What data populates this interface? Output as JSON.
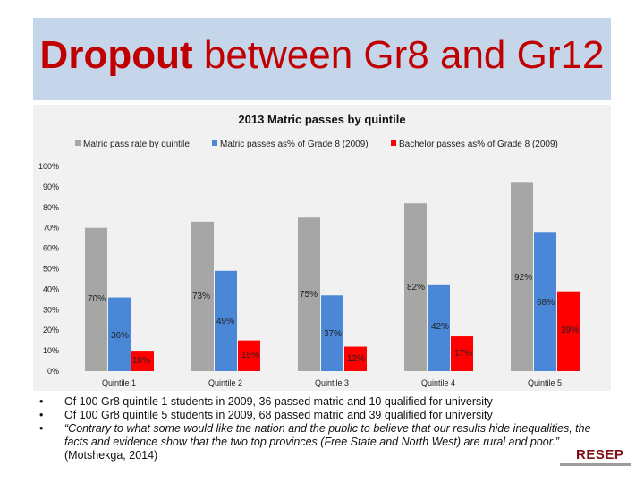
{
  "slide": {
    "title_bold": "Dropout",
    "title_rest": "between Gr8 and Gr12"
  },
  "chart_data": {
    "type": "bar",
    "title": "2013 Matric passes by quintile",
    "categories": [
      "Quintile 1",
      "Quintile 2",
      "Quintile 3",
      "Quintile 4",
      "Quintile 5"
    ],
    "series": [
      {
        "name": "Matric pass rate by quintile",
        "color": "#a6a6a6",
        "values": [
          70,
          73,
          75,
          82,
          92
        ],
        "labels": [
          "70%",
          "73%",
          "75%",
          "82%",
          "92%"
        ]
      },
      {
        "name": "Matric passes as% of Grade 8 (2009)",
        "color": "#4a87d6",
        "values": [
          36,
          49,
          37,
          42,
          68
        ],
        "labels": [
          "36%",
          "49%",
          "37%",
          "42%",
          "68%"
        ]
      },
      {
        "name": "Bachelor passes as% of Grade 8 (2009)",
        "color": "#ff0000",
        "values": [
          10,
          15,
          12,
          17,
          39
        ],
        "labels": [
          "10%",
          "15%",
          "12%",
          "17%",
          "39%"
        ]
      }
    ],
    "yticks": [
      "0%",
      "10%",
      "20%",
      "30%",
      "40%",
      "50%",
      "60%",
      "70%",
      "80%",
      "90%",
      "100%"
    ],
    "ylim": [
      0,
      100
    ],
    "legend": "top",
    "grid": false
  },
  "bullets": [
    {
      "text": "Of 100 Gr8 quintile 1 students in 2009, 36 passed matric and 10 qualified for university"
    },
    {
      "text": "Of 100 Gr8 quintile 5 students in 2009, 68 passed matric and 39 qualified for university"
    },
    {
      "quote": "“Contrary to what some would like the nation and the public to believe that our results hide inequalities, the facts and evidence show that the two top provinces (Free State and North West) are rural and poor.”",
      "source": " (Motshekga, 2014)"
    }
  ],
  "bullet_glyph": "•",
  "logo": {
    "text": "RESEP"
  }
}
